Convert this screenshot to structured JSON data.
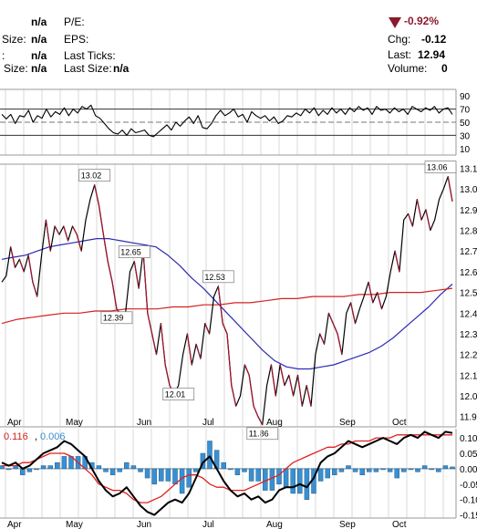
{
  "quote": {
    "rows": [
      {
        "l1": "",
        "v1": "n/a",
        "l2": "P/E:",
        "v2": ""
      },
      {
        "l1": "Size:",
        "v1": "n/a",
        "l2": "EPS:",
        "v2": ""
      },
      {
        "l1": ":",
        "v1": "n/a",
        "l2": "Last Ticks:",
        "v2": ""
      },
      {
        "l1": "Size:",
        "v1": "n/a",
        "l2": "Last Size:",
        "v2": "n/a"
      }
    ],
    "change_pct": "-0.92%",
    "chg_label": "Chg:",
    "chg_value": "-0.12",
    "last_label": "Last:",
    "last_value": "12.94",
    "volume_label": "Volume:",
    "volume_value": "0",
    "colors": {
      "down": "#8a1a2e"
    }
  },
  "chart_data": [
    {
      "type": "line",
      "panel": "rsi",
      "yticks": [
        90,
        70,
        50,
        30,
        10
      ],
      "ylim": [
        0,
        100
      ],
      "values": [
        62,
        55,
        62,
        48,
        60,
        58,
        68,
        50,
        60,
        56,
        70,
        58,
        66,
        62,
        72,
        60,
        70,
        64,
        74,
        70,
        76,
        60,
        56,
        48,
        40,
        34,
        32,
        38,
        30,
        40,
        34,
        36,
        38,
        30,
        28,
        34,
        40,
        46,
        38,
        50,
        44,
        52,
        58,
        48,
        60,
        42,
        40,
        48,
        60,
        68,
        60,
        64,
        70,
        58,
        62,
        50,
        66,
        60,
        56,
        60,
        52,
        58,
        48,
        52,
        60,
        58,
        64,
        60,
        70,
        64,
        72,
        60,
        68,
        62,
        72,
        64,
        70,
        62,
        72,
        66,
        74,
        68,
        72,
        62,
        74,
        68,
        70,
        64,
        72,
        66,
        70,
        62,
        74,
        70,
        66,
        72,
        68,
        74,
        64,
        70,
        72,
        62
      ]
    },
    {
      "type": "line",
      "panel": "price",
      "x_labels": [
        "Apr",
        "May",
        "Jun",
        "Jul",
        "Aug",
        "Sep",
        "Oct"
      ],
      "yticks": [
        "13.1",
        "13.0",
        "12.9",
        "12.8",
        "12.7",
        "12.6",
        "12.5",
        "12.4",
        "12.3",
        "12.2",
        "12.1",
        "12.0",
        "11.9"
      ],
      "ylim": [
        11.85,
        13.12
      ],
      "annotations": [
        {
          "label": "13.02",
          "i": 21
        },
        {
          "label": "12.65",
          "i": 30
        },
        {
          "label": "12.39",
          "i": 26
        },
        {
          "label": "12.01",
          "i": 40
        },
        {
          "label": "12.53",
          "i": 49
        },
        {
          "label": "11.86",
          "i": 59
        },
        {
          "label": "13.06",
          "i": 101
        }
      ],
      "series": [
        {
          "color": "#a3142f",
          "values": [
            12.55,
            12.58,
            12.72,
            12.62,
            12.66,
            12.6,
            12.68,
            12.55,
            12.48,
            12.68,
            12.85,
            12.7,
            12.82,
            12.78,
            12.82,
            12.75,
            12.82,
            12.78,
            12.7,
            12.85,
            12.95,
            13.02,
            12.92,
            12.78,
            12.65,
            12.55,
            12.42,
            12.39,
            12.4,
            12.6,
            12.65,
            12.52,
            12.7,
            12.4,
            12.3,
            12.2,
            12.35,
            12.15,
            12.05,
            12.01,
            12.05,
            12.2,
            12.3,
            12.15,
            12.25,
            12.18,
            12.35,
            12.3,
            12.48,
            12.53,
            12.35,
            12.3,
            12.05,
            11.95,
            12.0,
            12.15,
            12.1,
            11.95,
            11.9,
            11.86,
            12.05,
            12.15,
            12.0,
            12.15,
            12.05,
            12.1,
            12.0,
            12.1,
            11.95,
            12.05,
            11.95,
            12.2,
            12.3,
            12.25,
            12.4,
            12.35,
            12.3,
            12.2,
            12.4,
            12.45,
            12.35,
            12.42,
            12.48,
            12.55,
            12.45,
            12.5,
            12.42,
            12.48,
            12.6,
            12.7,
            12.6,
            12.85,
            12.88,
            12.82,
            12.95,
            12.85,
            12.9,
            12.8,
            12.85,
            12.95,
            13.0,
            13.06,
            12.94
          ]
        },
        {
          "color": "#2b2bb0",
          "values": [
            12.66,
            12.67,
            12.68,
            12.7,
            12.72,
            12.73,
            12.74,
            12.75,
            12.76,
            12.76,
            12.75,
            12.74,
            12.73,
            12.72,
            12.68,
            12.63,
            12.57,
            12.52,
            12.46,
            12.4,
            12.34,
            12.28,
            12.22,
            12.17,
            12.14,
            12.13,
            12.13,
            12.14,
            12.15,
            12.17,
            12.19,
            12.21,
            12.24,
            12.28,
            12.33,
            12.38,
            12.43,
            12.49,
            12.54
          ]
        },
        {
          "color": "#d42020",
          "values": [
            12.35,
            12.37,
            12.38,
            12.39,
            12.4,
            12.4,
            12.41,
            12.41,
            12.42,
            12.42,
            12.42,
            12.43,
            12.43,
            12.44,
            12.44,
            12.45,
            12.45,
            12.46,
            12.47,
            12.47,
            12.48,
            12.48,
            12.48,
            12.49,
            12.49,
            12.5,
            12.5,
            12.5,
            12.51,
            12.52
          ]
        }
      ]
    },
    {
      "type": "line",
      "panel": "macd",
      "legend": [
        "0.116",
        "0.006"
      ],
      "yticks": [
        "0.10",
        "0.05",
        "0.00",
        "-0.05",
        "-0.10",
        "-0.15"
      ],
      "ylim": [
        -0.16,
        0.13
      ],
      "series": [
        {
          "color": "#000000",
          "values": [
            0.02,
            0.01,
            0.02,
            0.0,
            0.01,
            0.03,
            0.05,
            0.06,
            0.07,
            0.09,
            0.08,
            0.06,
            0.04,
            0.0,
            -0.04,
            -0.07,
            -0.09,
            -0.08,
            -0.06,
            -0.09,
            -0.12,
            -0.14,
            -0.15,
            -0.13,
            -0.11,
            -0.1,
            -0.11,
            -0.08,
            -0.03,
            0.02,
            0.04,
            0.0,
            -0.04,
            -0.07,
            -0.09,
            -0.08,
            -0.1,
            -0.09,
            -0.11,
            -0.1,
            -0.07,
            -0.06,
            -0.06,
            -0.05,
            -0.06,
            -0.03,
            0.02,
            0.04,
            0.05,
            0.07,
            0.09,
            0.08,
            0.07,
            0.08,
            0.09,
            0.1,
            0.09,
            0.08,
            0.1,
            0.11,
            0.1,
            0.12,
            0.11,
            0.1,
            0.12,
            0.116
          ]
        },
        {
          "color": "#e02020",
          "values": [
            0.01,
            0.01,
            0.01,
            0.02,
            0.02,
            0.03,
            0.04,
            0.05,
            0.05,
            0.05,
            0.04,
            0.02,
            0.0,
            -0.02,
            -0.05,
            -0.06,
            -0.07,
            -0.07,
            -0.08,
            -0.1,
            -0.11,
            -0.11,
            -0.1,
            -0.09,
            -0.07,
            -0.05,
            -0.03,
            -0.02,
            -0.02,
            -0.03,
            -0.05,
            -0.06,
            -0.06,
            -0.07,
            -0.07,
            -0.07,
            -0.06,
            -0.05,
            -0.04,
            -0.03,
            -0.02,
            0.0,
            0.02,
            0.03,
            0.04,
            0.05,
            0.06,
            0.07,
            0.07,
            0.08,
            0.08,
            0.09,
            0.09,
            0.09,
            0.1,
            0.1,
            0.1,
            0.11,
            0.11,
            0.11,
            0.11,
            0.11,
            0.11,
            0.11,
            0.11,
            0.11
          ]
        },
        {
          "color": "#3a8fd0",
          "type": "bar",
          "values": [
            0.01,
            0.0,
            0.01,
            -0.02,
            -0.01,
            0.0,
            0.01,
            0.01,
            0.02,
            0.04,
            0.04,
            0.04,
            0.04,
            0.02,
            0.01,
            -0.01,
            -0.02,
            -0.01,
            0.02,
            0.01,
            -0.01,
            -0.03,
            -0.05,
            -0.04,
            -0.04,
            -0.05,
            -0.08,
            -0.06,
            -0.01,
            0.05,
            0.09,
            0.06,
            0.02,
            0.0,
            -0.02,
            -0.01,
            -0.04,
            -0.04,
            -0.07,
            -0.07,
            -0.05,
            -0.06,
            -0.08,
            -0.08,
            -0.1,
            -0.08,
            -0.04,
            -0.03,
            -0.02,
            -0.01,
            0.01,
            -0.01,
            -0.02,
            -0.01,
            -0.01,
            0.0,
            -0.01,
            -0.03,
            -0.01,
            0.0,
            -0.01,
            0.01,
            0.0,
            -0.01,
            0.01,
            0.006
          ]
        }
      ]
    }
  ]
}
